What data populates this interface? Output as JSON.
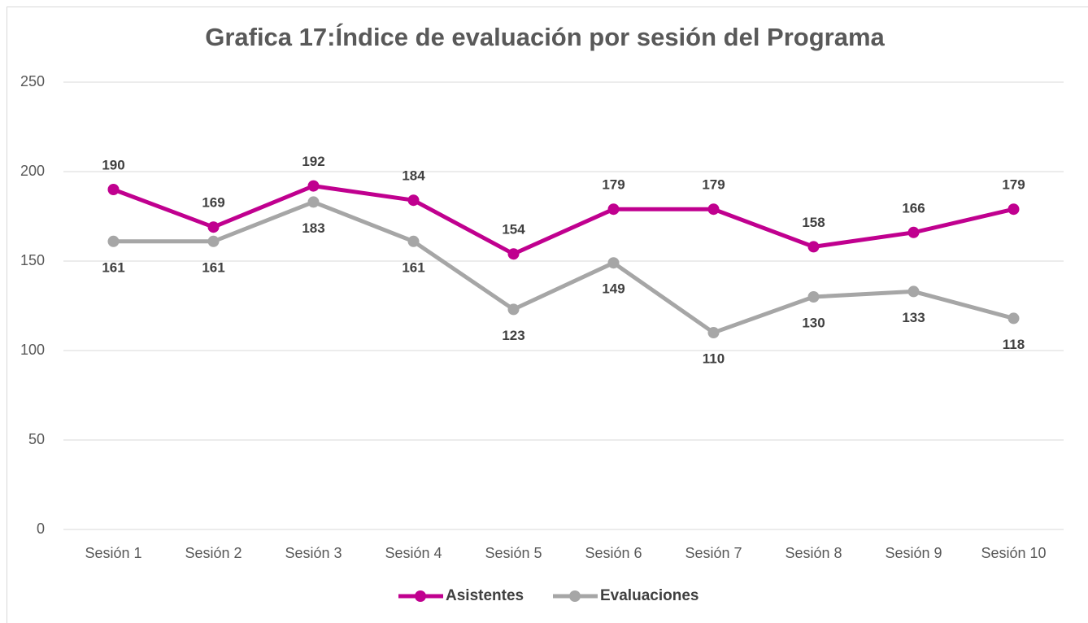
{
  "chart_data": {
    "type": "line",
    "title": "Grafica 17:Índice de evaluación por sesión del Programa",
    "categories": [
      "Sesión 1",
      "Sesión 2",
      "Sesión 3",
      "Sesión 4",
      "Sesión 5",
      "Sesión 6",
      "Sesión 7",
      "Sesión 8",
      "Sesión 9",
      "Sesión 10"
    ],
    "series": [
      {
        "name": "Asistentes",
        "color": "#c0008f",
        "values": [
          190,
          169,
          192,
          184,
          154,
          179,
          179,
          158,
          166,
          179
        ]
      },
      {
        "name": "Evaluaciones",
        "color": "#a6a6a6",
        "values": [
          161,
          161,
          183,
          161,
          123,
          149,
          110,
          130,
          133,
          118
        ]
      }
    ],
    "ylim": [
      0,
      250
    ],
    "yticks": [
      0,
      50,
      100,
      150,
      200,
      250
    ],
    "grid": true,
    "legend": "bottom"
  }
}
